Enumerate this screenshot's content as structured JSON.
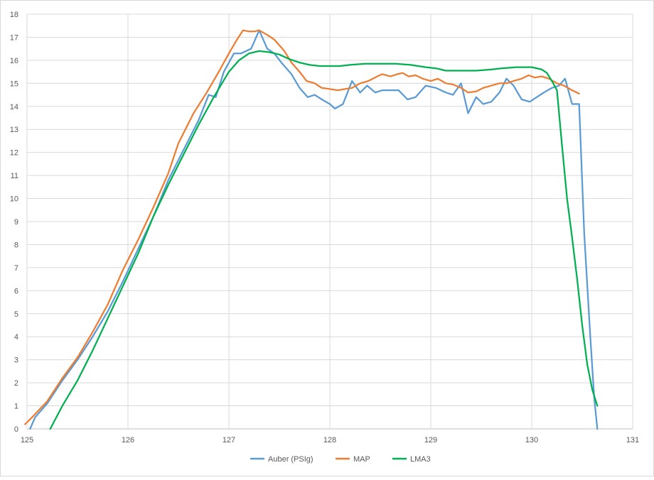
{
  "chart_data": {
    "type": "line",
    "title": "",
    "xlabel": "",
    "ylabel": "",
    "xlim": [
      125,
      131
    ],
    "ylim": [
      0,
      18
    ],
    "x_ticks": [
      "125",
      "126",
      "127",
      "128",
      "129",
      "130",
      "131"
    ],
    "y_ticks": [
      "0",
      "1",
      "2",
      "3",
      "4",
      "5",
      "6",
      "7",
      "8",
      "9",
      "10",
      "11",
      "12",
      "13",
      "14",
      "15",
      "16",
      "17",
      "18"
    ],
    "grid": true,
    "legend_position": "bottom",
    "series": [
      {
        "name": "Auber (PSIg)",
        "color": "#5b9bd5",
        "points": [
          [
            125.03,
            0.0
          ],
          [
            125.08,
            0.5
          ],
          [
            125.2,
            1.1
          ],
          [
            125.35,
            2.1
          ],
          [
            125.5,
            3.0
          ],
          [
            125.65,
            4.0
          ],
          [
            125.8,
            5.1
          ],
          [
            125.95,
            6.4
          ],
          [
            126.1,
            7.8
          ],
          [
            126.25,
            9.2
          ],
          [
            126.4,
            10.8
          ],
          [
            126.55,
            12.1
          ],
          [
            126.7,
            13.4
          ],
          [
            126.8,
            14.5
          ],
          [
            126.87,
            14.4
          ],
          [
            126.95,
            15.5
          ],
          [
            127.05,
            16.3
          ],
          [
            127.12,
            16.3
          ],
          [
            127.22,
            16.5
          ],
          [
            127.3,
            17.3
          ],
          [
            127.38,
            16.5
          ],
          [
            127.45,
            16.3
          ],
          [
            127.52,
            15.9
          ],
          [
            127.62,
            15.4
          ],
          [
            127.7,
            14.8
          ],
          [
            127.78,
            14.4
          ],
          [
            127.85,
            14.5
          ],
          [
            127.92,
            14.3
          ],
          [
            128.0,
            14.1
          ],
          [
            128.05,
            13.9
          ],
          [
            128.13,
            14.1
          ],
          [
            128.22,
            15.1
          ],
          [
            128.3,
            14.6
          ],
          [
            128.37,
            14.9
          ],
          [
            128.45,
            14.6
          ],
          [
            128.52,
            14.7
          ],
          [
            128.6,
            14.7
          ],
          [
            128.68,
            14.7
          ],
          [
            128.77,
            14.3
          ],
          [
            128.85,
            14.4
          ],
          [
            128.95,
            14.9
          ],
          [
            129.05,
            14.8
          ],
          [
            129.15,
            14.6
          ],
          [
            129.22,
            14.5
          ],
          [
            129.3,
            15.0
          ],
          [
            129.37,
            13.7
          ],
          [
            129.45,
            14.4
          ],
          [
            129.52,
            14.1
          ],
          [
            129.6,
            14.2
          ],
          [
            129.68,
            14.6
          ],
          [
            129.75,
            15.2
          ],
          [
            129.82,
            14.9
          ],
          [
            129.9,
            14.3
          ],
          [
            129.98,
            14.2
          ],
          [
            130.05,
            14.4
          ],
          [
            130.12,
            14.6
          ],
          [
            130.2,
            14.8
          ],
          [
            130.27,
            14.9
          ],
          [
            130.33,
            15.2
          ],
          [
            130.4,
            14.1
          ],
          [
            130.47,
            14.1
          ],
          [
            130.52,
            8.5
          ],
          [
            130.58,
            4.0
          ],
          [
            130.62,
            1.3
          ],
          [
            130.65,
            0.0
          ]
        ]
      },
      {
        "name": "MAP",
        "color": "#ed7d31",
        "points": [
          [
            124.98,
            0.2
          ],
          [
            125.05,
            0.5
          ],
          [
            125.2,
            1.2
          ],
          [
            125.35,
            2.2
          ],
          [
            125.5,
            3.1
          ],
          [
            125.65,
            4.2
          ],
          [
            125.8,
            5.4
          ],
          [
            125.95,
            6.9
          ],
          [
            126.1,
            8.2
          ],
          [
            126.25,
            9.6
          ],
          [
            126.4,
            11.1
          ],
          [
            126.5,
            12.4
          ],
          [
            126.65,
            13.7
          ],
          [
            126.78,
            14.6
          ],
          [
            126.9,
            15.5
          ],
          [
            127.0,
            16.3
          ],
          [
            127.08,
            16.9
          ],
          [
            127.14,
            17.3
          ],
          [
            127.2,
            17.25
          ],
          [
            127.25,
            17.25
          ],
          [
            127.3,
            17.3
          ],
          [
            127.38,
            17.1
          ],
          [
            127.45,
            16.9
          ],
          [
            127.55,
            16.4
          ],
          [
            127.62,
            15.9
          ],
          [
            127.7,
            15.5
          ],
          [
            127.77,
            15.1
          ],
          [
            127.85,
            15.0
          ],
          [
            127.92,
            14.8
          ],
          [
            128.0,
            14.75
          ],
          [
            128.08,
            14.7
          ],
          [
            128.15,
            14.75
          ],
          [
            128.22,
            14.8
          ],
          [
            128.3,
            15.0
          ],
          [
            128.38,
            15.1
          ],
          [
            128.47,
            15.3
          ],
          [
            128.52,
            15.4
          ],
          [
            128.6,
            15.3
          ],
          [
            128.67,
            15.4
          ],
          [
            128.72,
            15.45
          ],
          [
            128.78,
            15.3
          ],
          [
            128.85,
            15.35
          ],
          [
            128.92,
            15.2
          ],
          [
            129.0,
            15.1
          ],
          [
            129.07,
            15.2
          ],
          [
            129.15,
            15.0
          ],
          [
            129.22,
            14.95
          ],
          [
            129.3,
            14.8
          ],
          [
            129.37,
            14.6
          ],
          [
            129.45,
            14.65
          ],
          [
            129.52,
            14.8
          ],
          [
            129.6,
            14.9
          ],
          [
            129.68,
            15.0
          ],
          [
            129.75,
            15.0
          ],
          [
            129.82,
            15.1
          ],
          [
            129.9,
            15.2
          ],
          [
            129.97,
            15.35
          ],
          [
            130.03,
            15.25
          ],
          [
            130.1,
            15.3
          ],
          [
            130.17,
            15.2
          ],
          [
            130.25,
            15.0
          ],
          [
            130.32,
            14.9
          ],
          [
            130.4,
            14.7
          ],
          [
            130.47,
            14.55
          ]
        ]
      },
      {
        "name": "LMA3",
        "color": "#00b050",
        "points": [
          [
            125.23,
            0.0
          ],
          [
            125.35,
            1.0
          ],
          [
            125.5,
            2.1
          ],
          [
            125.65,
            3.4
          ],
          [
            125.8,
            4.8
          ],
          [
            125.95,
            6.2
          ],
          [
            126.1,
            7.6
          ],
          [
            126.25,
            9.2
          ],
          [
            126.4,
            10.6
          ],
          [
            126.55,
            11.9
          ],
          [
            126.7,
            13.2
          ],
          [
            126.85,
            14.4
          ],
          [
            127.0,
            15.5
          ],
          [
            127.1,
            16.0
          ],
          [
            127.2,
            16.3
          ],
          [
            127.3,
            16.4
          ],
          [
            127.4,
            16.35
          ],
          [
            127.5,
            16.25
          ],
          [
            127.6,
            16.05
          ],
          [
            127.7,
            15.9
          ],
          [
            127.8,
            15.8
          ],
          [
            127.9,
            15.75
          ],
          [
            128.0,
            15.75
          ],
          [
            128.1,
            15.75
          ],
          [
            128.2,
            15.8
          ],
          [
            128.35,
            15.85
          ],
          [
            128.5,
            15.85
          ],
          [
            128.65,
            15.85
          ],
          [
            128.8,
            15.8
          ],
          [
            128.95,
            15.7
          ],
          [
            129.05,
            15.65
          ],
          [
            129.15,
            15.55
          ],
          [
            129.3,
            15.55
          ],
          [
            129.45,
            15.55
          ],
          [
            129.6,
            15.6
          ],
          [
            129.7,
            15.65
          ],
          [
            129.85,
            15.7
          ],
          [
            130.0,
            15.7
          ],
          [
            130.1,
            15.6
          ],
          [
            130.15,
            15.45
          ],
          [
            130.2,
            15.1
          ],
          [
            130.25,
            14.7
          ],
          [
            130.3,
            12.3
          ],
          [
            130.35,
            10.0
          ],
          [
            130.4,
            8.3
          ],
          [
            130.45,
            6.5
          ],
          [
            130.5,
            4.5
          ],
          [
            130.55,
            2.8
          ],
          [
            130.6,
            1.7
          ],
          [
            130.65,
            1.0
          ]
        ]
      }
    ]
  }
}
